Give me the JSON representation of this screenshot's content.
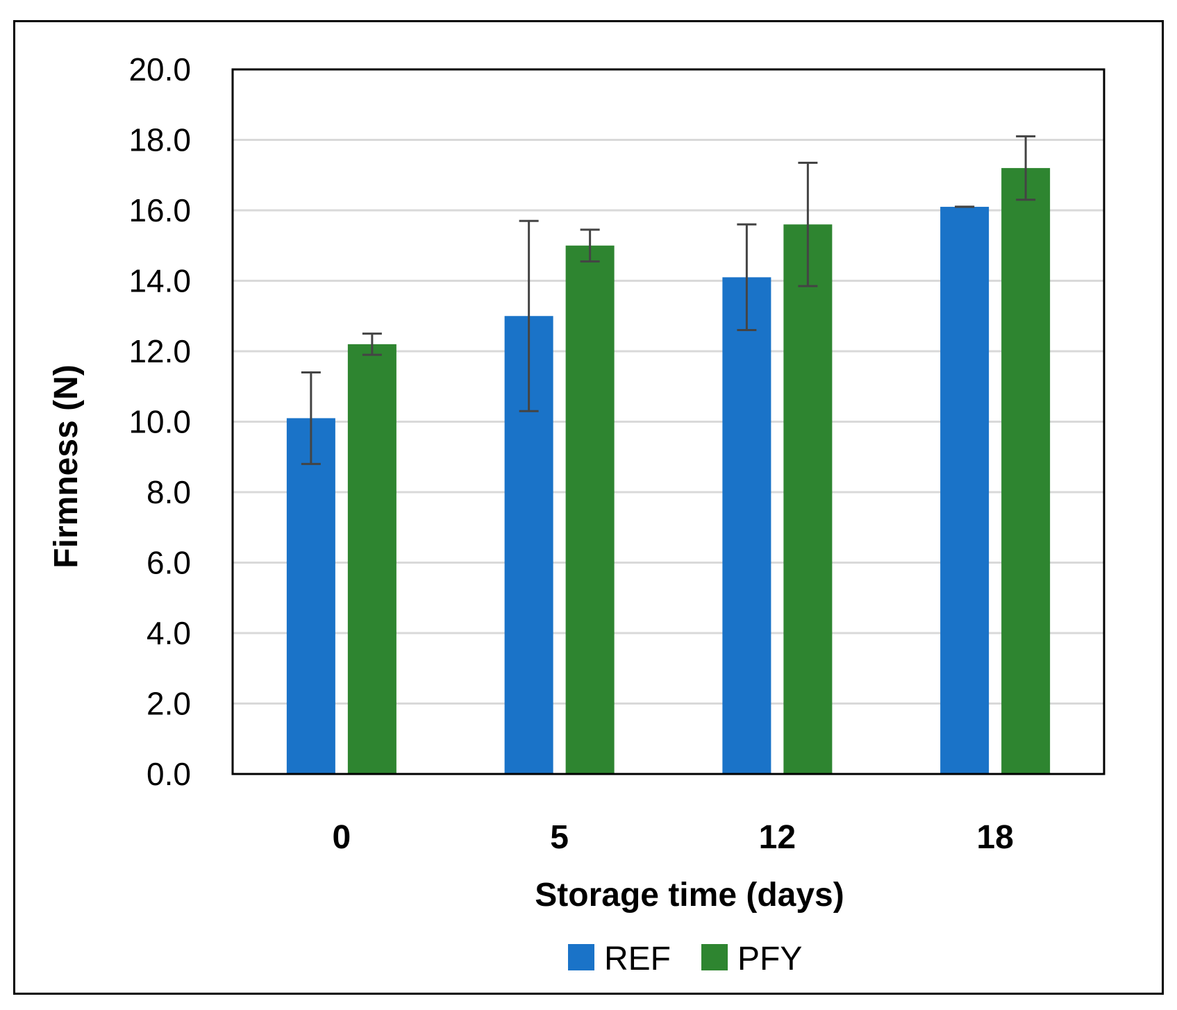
{
  "chart_data": {
    "type": "bar",
    "categories": [
      "0",
      "5",
      "12",
      "18"
    ],
    "series": [
      {
        "name": "REF",
        "color": "#1a73c8",
        "values": [
          10.1,
          13.0,
          14.1,
          16.1
        ],
        "error": [
          1.3,
          2.7,
          1.5,
          0.0
        ]
      },
      {
        "name": "PFY",
        "color": "#2e8530",
        "values": [
          12.2,
          15.0,
          15.6,
          17.2
        ],
        "error": [
          0.3,
          0.45,
          1.75,
          0.9
        ]
      }
    ],
    "xlabel": "Storage time (days)",
    "ylabel": "Firmness (N)",
    "ylim": [
      0,
      20
    ],
    "yticks": [
      "0.0",
      "2.0",
      "4.0",
      "6.0",
      "8.0",
      "10.0",
      "12.0",
      "14.0",
      "16.0",
      "18.0",
      "20.0"
    ],
    "grid": true,
    "legend": "bottom-center",
    "error_bar_color": "#444444",
    "gridline_color": "#d9d9d9"
  }
}
